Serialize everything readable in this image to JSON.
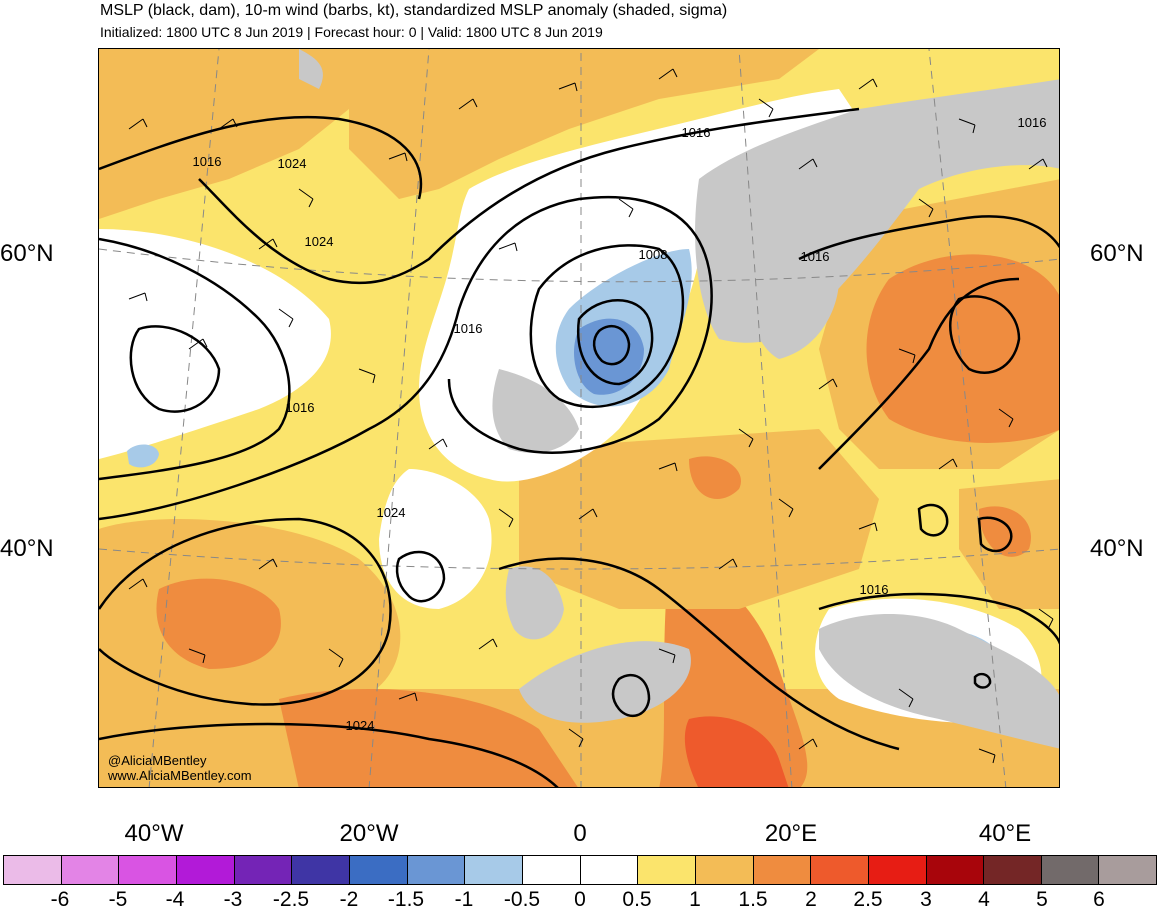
{
  "header": {
    "title": "MSLP (black, dam), 10-m wind (barbs, kt), standardized MSLP anomaly (shaded, sigma)",
    "subtitle": "Initialized: 1800 UTC 8 Jun 2019 | Forecast hour: 0 | Valid: 1800 UTC 8 Jun 2019"
  },
  "map": {
    "lat_labels": {
      "lat60_left": "60°N",
      "lat60_right": "60°N",
      "lat40_left": "40°N",
      "lat40_right": "40°N"
    },
    "lon_labels": [
      "40°W",
      "20°W",
      "0",
      "20°E",
      "40°E"
    ],
    "contour_labels": {
      "c1": "1016",
      "c2": "1024",
      "c3": "1024",
      "c4": "1016",
      "c5": "1016",
      "c6": "1016",
      "c7": "1008",
      "c8": "1016",
      "c9": "1016",
      "c10": "1024",
      "c11": "1016",
      "c12": "1024"
    },
    "credit_handle": "@AliciaMBentley",
    "credit_site": "www.AliciaMBentley.com"
  },
  "colorbar": {
    "labels": [
      "-6",
      "-5",
      "-4",
      "-3",
      "-2.5",
      "-2",
      "-1.5",
      "-1",
      "-0.5",
      "0",
      "0.5",
      "1",
      "1.5",
      "2",
      "2.5",
      "3",
      "4",
      "5",
      "6"
    ],
    "colors": [
      "#ebbbe8",
      "#e384e6",
      "#d954e3",
      "#b21ad8",
      "#7424b6",
      "#3f35a5",
      "#3b6dc3",
      "#6a96d4",
      "#a7cae8",
      "#ffffff",
      "#ffffff",
      "#fbe46c",
      "#f3bc56",
      "#ef8c3f",
      "#ee5a2c",
      "#e71d14",
      "#a8050b",
      "#742626",
      "#726a6a",
      "#a89c9c"
    ]
  }
}
